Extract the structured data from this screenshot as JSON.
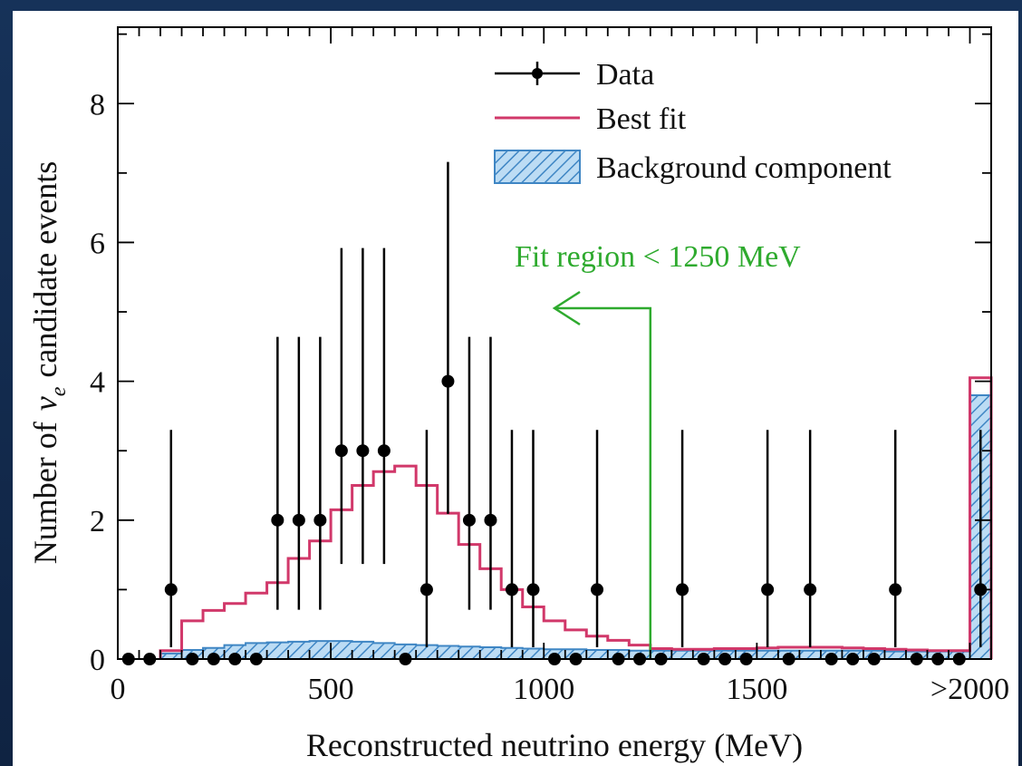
{
  "chart_data": {
    "type": "histogram",
    "xlabel": "Reconstructed neutrino energy (MeV)",
    "ylabel_prefix": "Number of",
    "ylabel_symbol": "ν",
    "ylabel_subscript": "e",
    "ylabel_suffix": "candidate events",
    "xlim": [
      0,
      2050
    ],
    "ylim": [
      0,
      9.1
    ],
    "x_ticks": [
      {
        "value": 0,
        "label": "0"
      },
      {
        "value": 500,
        "label": "500"
      },
      {
        "value": 1000,
        "label": "1000"
      },
      {
        "value": 1500,
        "label": "1500"
      },
      {
        "value": 2000,
        "label": ">2000"
      }
    ],
    "y_ticks": [
      {
        "value": 0,
        "label": "0"
      },
      {
        "value": 2,
        "label": "2"
      },
      {
        "value": 4,
        "label": "4"
      },
      {
        "value": 6,
        "label": "6"
      },
      {
        "value": 8,
        "label": "8"
      }
    ],
    "legend": [
      {
        "label": "Data",
        "style": "points"
      },
      {
        "label": "Best fit",
        "style": "line",
        "color": "#d1386a"
      },
      {
        "label": "Background component",
        "style": "hatched",
        "color": "#5aa0d8"
      }
    ],
    "annotation": {
      "text": "Fit region < 1250 MeV",
      "x_boundary": 1250,
      "color": "#2eaa2e"
    },
    "data_points": {
      "x": [
        25,
        75,
        125,
        175,
        225,
        275,
        325,
        375,
        425,
        475,
        525,
        575,
        625,
        675,
        725,
        775,
        825,
        875,
        925,
        975,
        1025,
        1075,
        1125,
        1175,
        1225,
        1275,
        1325,
        1375,
        1425,
        1475,
        1525,
        1575,
        1625,
        1675,
        1725,
        1775,
        1825,
        1875,
        1925,
        1975,
        2025
      ],
      "y": [
        0,
        0,
        1,
        0,
        0,
        0,
        0,
        2,
        2,
        2,
        3,
        3,
        3,
        0,
        1,
        4,
        2,
        2,
        1,
        1,
        0,
        0,
        1,
        0,
        0,
        0,
        1,
        0,
        0,
        0,
        1,
        0,
        1,
        0,
        0,
        0,
        1,
        0,
        0,
        0,
        1
      ],
      "err_up": [
        0,
        0,
        2.3,
        0,
        0,
        0,
        0,
        2.64,
        2.64,
        2.64,
        2.92,
        2.92,
        2.92,
        0,
        2.3,
        3.16,
        2.64,
        2.64,
        2.3,
        2.3,
        0,
        0,
        2.3,
        0,
        0,
        0,
        2.3,
        0,
        0,
        0,
        2.3,
        0,
        2.3,
        0,
        0,
        0,
        2.3,
        0,
        0,
        0,
        2.3
      ],
      "err_down": [
        0,
        0,
        0.83,
        0,
        0,
        0,
        0,
        1.29,
        1.29,
        1.29,
        1.63,
        1.63,
        1.63,
        0,
        0.83,
        1.91,
        1.29,
        1.29,
        0.83,
        0.83,
        0,
        0,
        0.83,
        0,
        0,
        0,
        0.83,
        0,
        0,
        0,
        0.83,
        0,
        0.83,
        0,
        0,
        0,
        0.83,
        0,
        0,
        0,
        0.83
      ]
    },
    "best_fit": {
      "bin_edges": [
        100,
        150,
        200,
        250,
        300,
        350,
        400,
        450,
        500,
        550,
        600,
        650,
        700,
        750,
        800,
        850,
        900,
        950,
        1000,
        1050,
        1100,
        1150,
        1200,
        1250,
        1300,
        1350,
        1400,
        1450,
        1500,
        1550,
        1600,
        1650,
        1700,
        1750,
        1800,
        1850,
        1900,
        1950,
        2000,
        2050
      ],
      "values": [
        0.12,
        0.55,
        0.7,
        0.8,
        0.95,
        1.1,
        1.45,
        1.7,
        2.15,
        2.5,
        2.7,
        2.78,
        2.5,
        2.1,
        1.65,
        1.3,
        1.0,
        0.75,
        0.55,
        0.42,
        0.33,
        0.27,
        0.2,
        0.15,
        0.14,
        0.14,
        0.15,
        0.15,
        0.16,
        0.17,
        0.17,
        0.17,
        0.16,
        0.15,
        0.14,
        0.13,
        0.12,
        0.12,
        4.05
      ]
    },
    "background": {
      "bin_edges": [
        100,
        150,
        200,
        250,
        300,
        350,
        400,
        450,
        500,
        550,
        600,
        650,
        700,
        750,
        800,
        850,
        900,
        950,
        1000,
        1050,
        1100,
        1150,
        1200,
        1250,
        1300,
        1350,
        1400,
        1450,
        1500,
        1550,
        1600,
        1650,
        1700,
        1750,
        1800,
        1850,
        1900,
        1950,
        2000,
        2050
      ],
      "values": [
        0.08,
        0.13,
        0.16,
        0.2,
        0.23,
        0.24,
        0.25,
        0.26,
        0.26,
        0.25,
        0.23,
        0.21,
        0.2,
        0.19,
        0.18,
        0.17,
        0.16,
        0.15,
        0.14,
        0.14,
        0.13,
        0.13,
        0.12,
        0.12,
        0.12,
        0.12,
        0.12,
        0.12,
        0.12,
        0.12,
        0.12,
        0.12,
        0.12,
        0.12,
        0.11,
        0.11,
        0.11,
        0.11,
        3.8
      ]
    },
    "colors": {
      "data": "#000000",
      "best_fit": "#d1386a",
      "background_fill": "#bcdcf4",
      "background_hatch": "#3f86c4",
      "annotation": "#2eaa2e"
    }
  }
}
